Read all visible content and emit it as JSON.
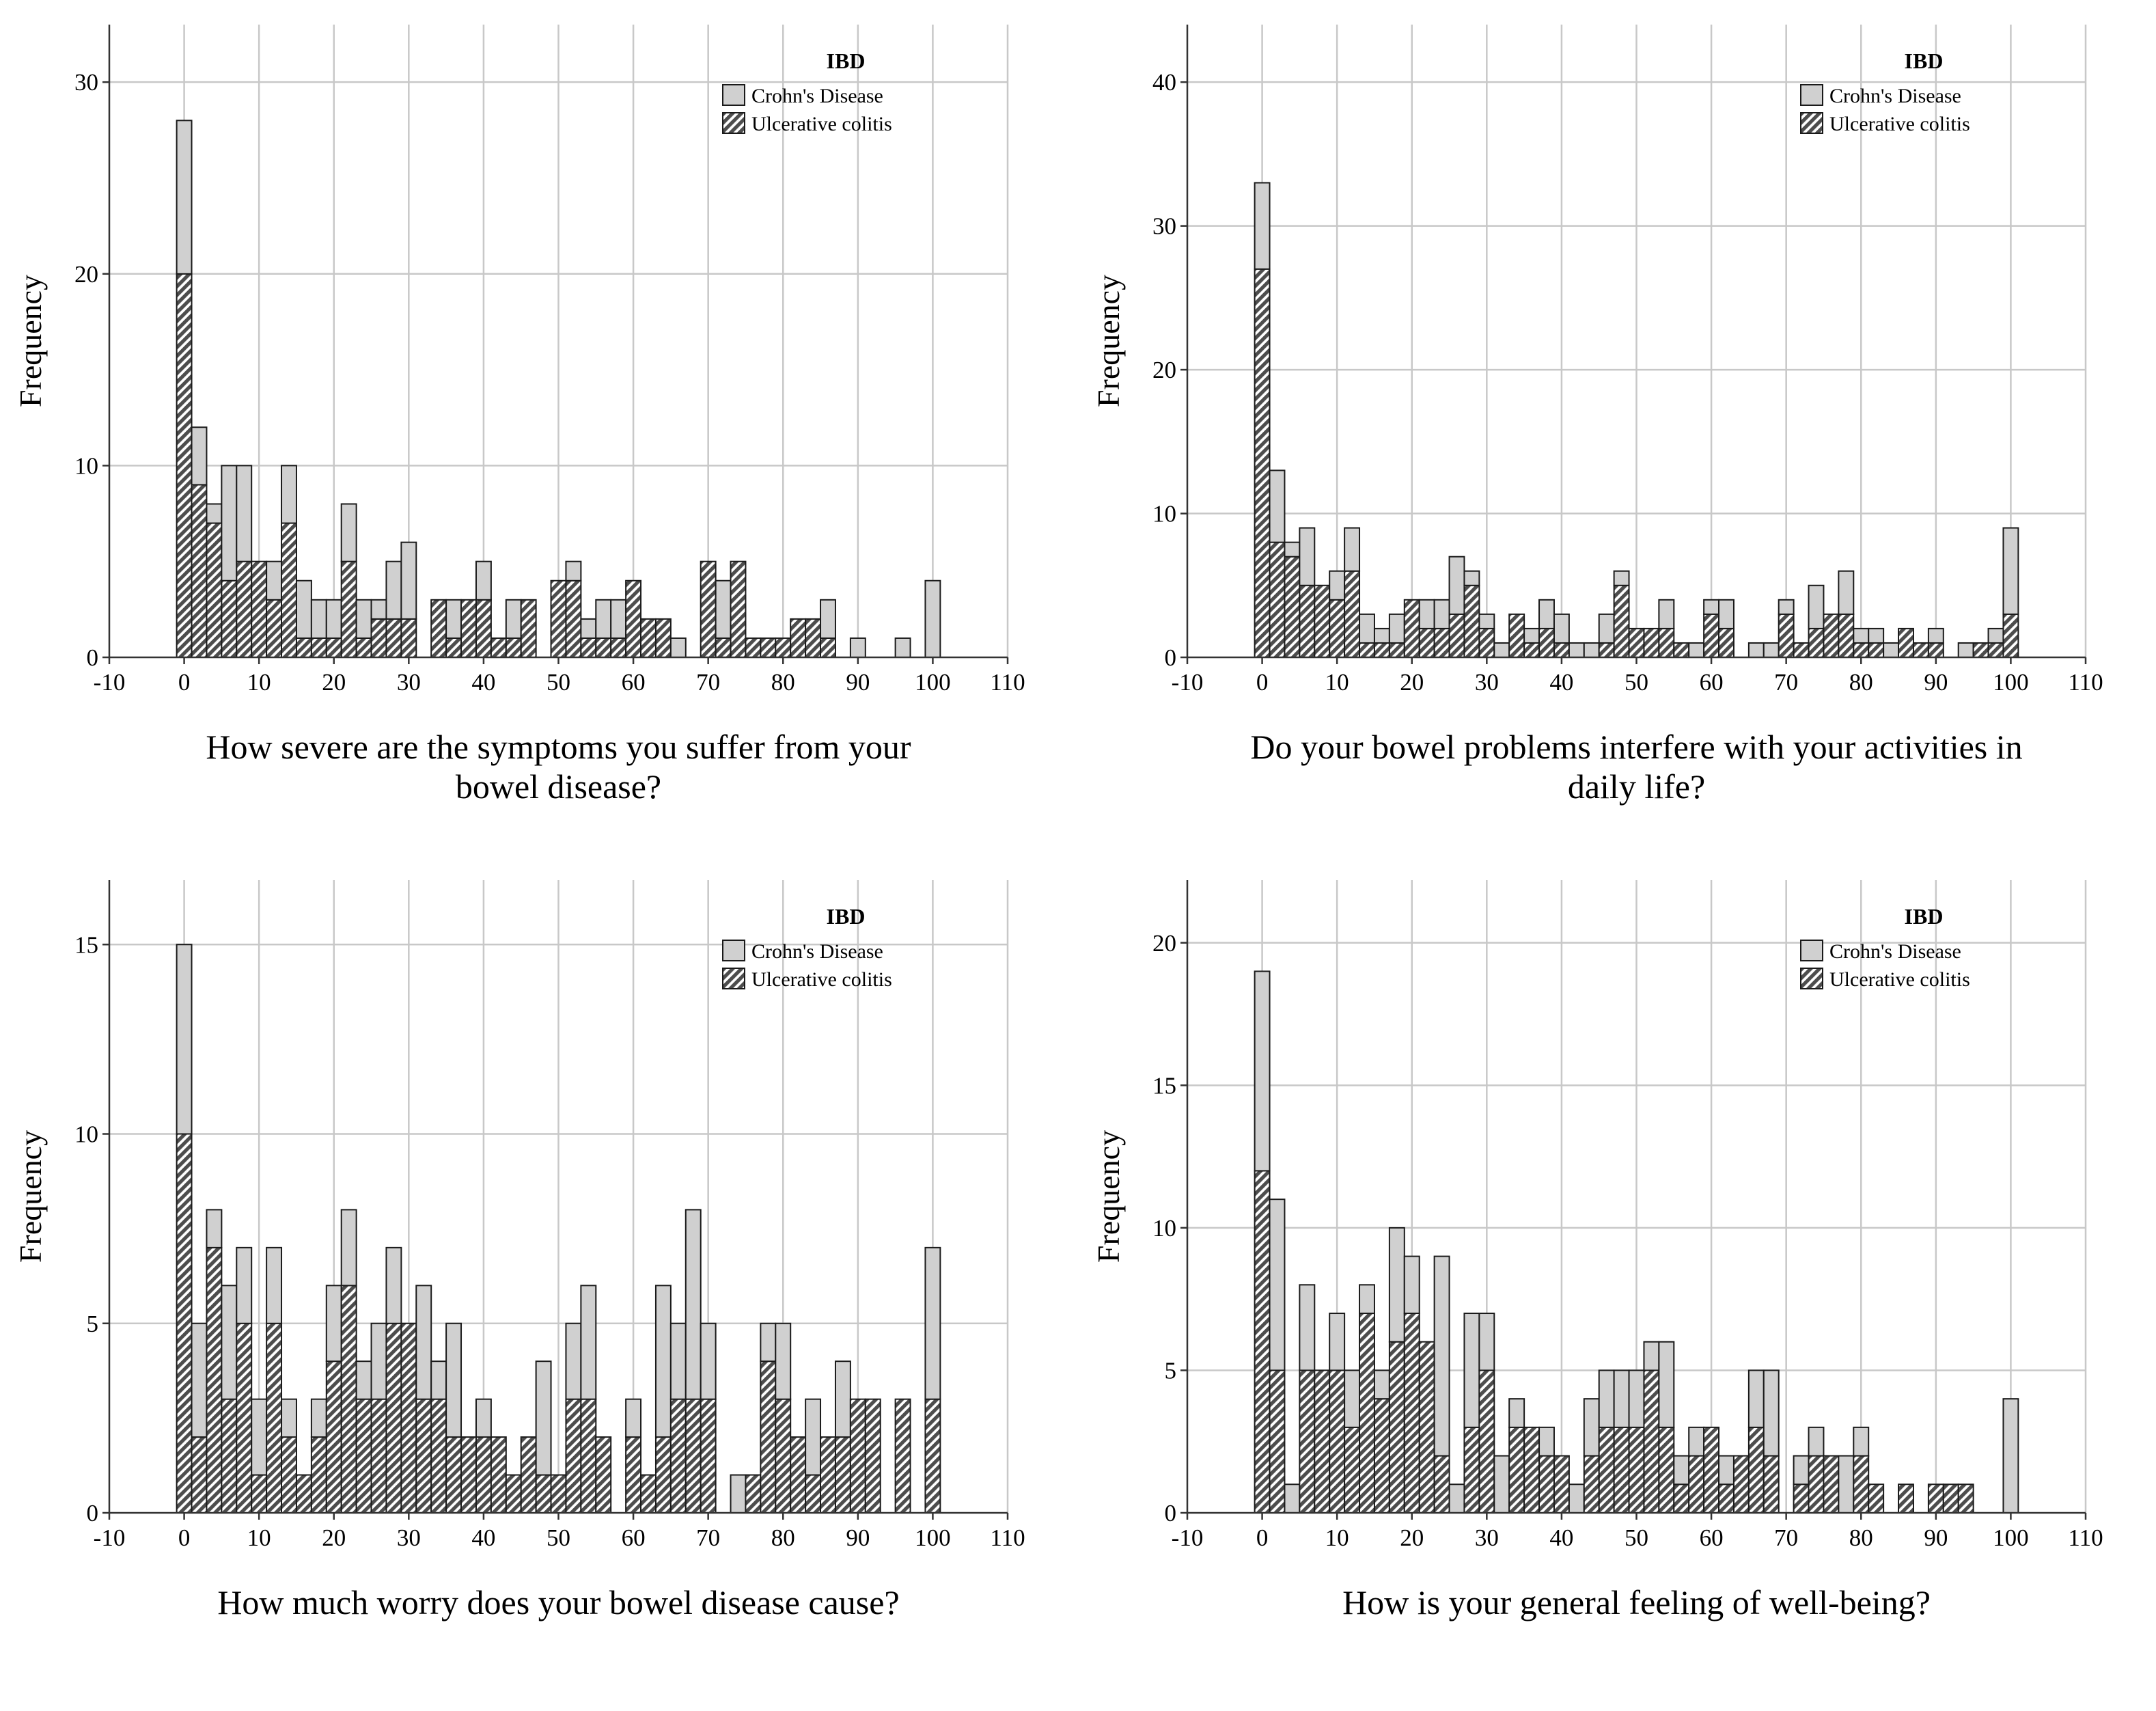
{
  "legend": {
    "title": "IBD",
    "crohn_label": "Crohn's Disease",
    "uc_label": "Ulcerative colitis"
  },
  "colors": {
    "crohn_fill": "#d0d0d0",
    "uc_fill": "#4d4d4d",
    "bar_stroke": "#1a1a1a",
    "grid": "#c8c8c8"
  },
  "chart_data": [
    {
      "type": "bar",
      "stacked": true,
      "title": "",
      "xlabel_lines": [
        "How severe are the symptoms you suffer from your",
        "bowel disease?"
      ],
      "ylabel": "Frequency",
      "xlim": [
        -10,
        110
      ],
      "ylim": [
        0,
        33
      ],
      "yticks": [
        0,
        10,
        20,
        30
      ],
      "xticks": [
        -10,
        0,
        10,
        20,
        30,
        40,
        50,
        60,
        70,
        80,
        90,
        100,
        110
      ],
      "bin_width": 2,
      "bin_centers": [
        0,
        2,
        4,
        6,
        8,
        10,
        12,
        14,
        16,
        18,
        20,
        22,
        24,
        26,
        28,
        30,
        32,
        34,
        36,
        38,
        40,
        42,
        44,
        46,
        48,
        50,
        52,
        54,
        56,
        58,
        60,
        62,
        64,
        66,
        68,
        70,
        72,
        74,
        76,
        78,
        80,
        82,
        84,
        86,
        88,
        90,
        92,
        94,
        96,
        98,
        100
      ],
      "series": [
        {
          "name": "Ulcerative colitis",
          "values": [
            20,
            9,
            7,
            4,
            5,
            5,
            3,
            7,
            1,
            1,
            1,
            5,
            1,
            2,
            2,
            2,
            0,
            3,
            1,
            3,
            3,
            1,
            1,
            3,
            0,
            4,
            4,
            1,
            1,
            1,
            4,
            2,
            2,
            0,
            0,
            5,
            1,
            5,
            1,
            1,
            1,
            2,
            2,
            1,
            0,
            0,
            0,
            0,
            0,
            0,
            0
          ]
        },
        {
          "name": "Crohn's Disease",
          "values": [
            8,
            3,
            1,
            6,
            5,
            0,
            2,
            3,
            3,
            2,
            2,
            3,
            2,
            1,
            3,
            4,
            0,
            0,
            2,
            0,
            2,
            0,
            2,
            0,
            0,
            0,
            1,
            1,
            2,
            2,
            0,
            0,
            0,
            1,
            0,
            0,
            3,
            0,
            0,
            0,
            0,
            0,
            0,
            2,
            0,
            1,
            0,
            0,
            1,
            0,
            4
          ]
        }
      ]
    },
    {
      "type": "bar",
      "stacked": true,
      "title": "",
      "xlabel_lines": [
        "Do your bowel problems interfere with your activities in",
        "daily life?"
      ],
      "ylabel": "Frequency",
      "xlim": [
        -10,
        110
      ],
      "ylim": [
        0,
        44
      ],
      "yticks": [
        0,
        10,
        20,
        30,
        40
      ],
      "xticks": [
        -10,
        0,
        10,
        20,
        30,
        40,
        50,
        60,
        70,
        80,
        90,
        100,
        110
      ],
      "bin_width": 2,
      "bin_centers": [
        0,
        2,
        4,
        6,
        8,
        10,
        12,
        14,
        16,
        18,
        20,
        22,
        24,
        26,
        28,
        30,
        32,
        34,
        36,
        38,
        40,
        42,
        44,
        46,
        48,
        50,
        52,
        54,
        56,
        58,
        60,
        62,
        64,
        66,
        68,
        70,
        72,
        74,
        76,
        78,
        80,
        82,
        84,
        86,
        88,
        90,
        92,
        94,
        96,
        98,
        100
      ],
      "series": [
        {
          "name": "Ulcerative colitis",
          "values": [
            27,
            8,
            7,
            5,
            5,
            4,
            6,
            1,
            1,
            1,
            4,
            2,
            2,
            3,
            5,
            2,
            0,
            3,
            1,
            2,
            1,
            0,
            0,
            1,
            5,
            2,
            2,
            2,
            1,
            0,
            3,
            2,
            0,
            0,
            0,
            3,
            1,
            2,
            3,
            3,
            1,
            1,
            0,
            2,
            1,
            1,
            0,
            0,
            1,
            1,
            3
          ]
        },
        {
          "name": "Crohn's Disease",
          "values": [
            6,
            5,
            1,
            4,
            0,
            2,
            3,
            2,
            1,
            2,
            0,
            2,
            2,
            4,
            1,
            1,
            1,
            0,
            1,
            2,
            2,
            1,
            1,
            2,
            1,
            0,
            0,
            2,
            0,
            1,
            1,
            2,
            0,
            1,
            1,
            1,
            0,
            3,
            0,
            3,
            1,
            1,
            1,
            0,
            0,
            1,
            0,
            1,
            0,
            1,
            6
          ]
        }
      ]
    },
    {
      "type": "bar",
      "stacked": true,
      "title": "",
      "xlabel_lines": [
        "How much worry does your bowel disease cause?"
      ],
      "ylabel": "Frequency",
      "xlim": [
        -10,
        110
      ],
      "ylim": [
        0,
        16.7
      ],
      "yticks": [
        0,
        5,
        10,
        15
      ],
      "xticks": [
        -10,
        0,
        10,
        20,
        30,
        40,
        50,
        60,
        70,
        80,
        90,
        100,
        110
      ],
      "bin_width": 2,
      "bin_centers": [
        0,
        2,
        4,
        6,
        8,
        10,
        12,
        14,
        16,
        18,
        20,
        22,
        24,
        26,
        28,
        30,
        32,
        34,
        36,
        38,
        40,
        42,
        44,
        46,
        48,
        50,
        52,
        54,
        56,
        58,
        60,
        62,
        64,
        66,
        68,
        70,
        72,
        74,
        76,
        78,
        80,
        82,
        84,
        86,
        88,
        90,
        92,
        94,
        96,
        98,
        100
      ],
      "series": [
        {
          "name": "Ulcerative colitis",
          "values": [
            10,
            2,
            7,
            3,
            5,
            1,
            5,
            2,
            1,
            2,
            4,
            6,
            3,
            3,
            5,
            5,
            3,
            3,
            2,
            2,
            2,
            2,
            1,
            2,
            1,
            1,
            3,
            3,
            2,
            0,
            2,
            1,
            2,
            3,
            3,
            3,
            0,
            0,
            1,
            4,
            3,
            2,
            1,
            2,
            2,
            3,
            3,
            0,
            3,
            0,
            3
          ]
        },
        {
          "name": "Crohn's Disease",
          "values": [
            5,
            3,
            1,
            3,
            2,
            2,
            2,
            1,
            0,
            1,
            2,
            2,
            1,
            2,
            2,
            0,
            3,
            1,
            3,
            0,
            1,
            0,
            0,
            0,
            3,
            0,
            2,
            3,
            0,
            0,
            1,
            0,
            4,
            2,
            5,
            2,
            0,
            1,
            0,
            1,
            2,
            0,
            2,
            0,
            2,
            0,
            0,
            0,
            0,
            0,
            4
          ]
        }
      ]
    },
    {
      "type": "bar",
      "stacked": true,
      "title": "",
      "xlabel_lines": [
        "How is your general feeling of well-being?"
      ],
      "ylabel": "Frequency",
      "xlim": [
        -10,
        110
      ],
      "ylim": [
        0,
        22.2
      ],
      "yticks": [
        0,
        5,
        10,
        15,
        20
      ],
      "xticks": [
        -10,
        0,
        10,
        20,
        30,
        40,
        50,
        60,
        70,
        80,
        90,
        100,
        110
      ],
      "bin_width": 2,
      "bin_centers": [
        0,
        2,
        4,
        6,
        8,
        10,
        12,
        14,
        16,
        18,
        20,
        22,
        24,
        26,
        28,
        30,
        32,
        34,
        36,
        38,
        40,
        42,
        44,
        46,
        48,
        50,
        52,
        54,
        56,
        58,
        60,
        62,
        64,
        66,
        68,
        70,
        72,
        74,
        76,
        78,
        80,
        82,
        84,
        86,
        88,
        90,
        92,
        94,
        96,
        98,
        100
      ],
      "series": [
        {
          "name": "Ulcerative colitis",
          "values": [
            12,
            5,
            0,
            5,
            5,
            5,
            3,
            7,
            4,
            6,
            7,
            6,
            2,
            0,
            3,
            5,
            0,
            3,
            3,
            2,
            2,
            0,
            2,
            3,
            3,
            3,
            5,
            3,
            1,
            2,
            3,
            1,
            2,
            3,
            2,
            0,
            1,
            2,
            2,
            0,
            2,
            1,
            0,
            1,
            0,
            1,
            1,
            1,
            0,
            0,
            0
          ]
        },
        {
          "name": "Crohn's Disease",
          "values": [
            7,
            6,
            1,
            3,
            0,
            2,
            2,
            1,
            1,
            4,
            2,
            0,
            7,
            1,
            4,
            2,
            2,
            1,
            0,
            1,
            0,
            1,
            2,
            2,
            2,
            2,
            1,
            3,
            1,
            1,
            0,
            1,
            0,
            2,
            3,
            0,
            1,
            1,
            0,
            2,
            1,
            0,
            0,
            0,
            0,
            0,
            0,
            0,
            0,
            0,
            4
          ]
        }
      ]
    }
  ]
}
